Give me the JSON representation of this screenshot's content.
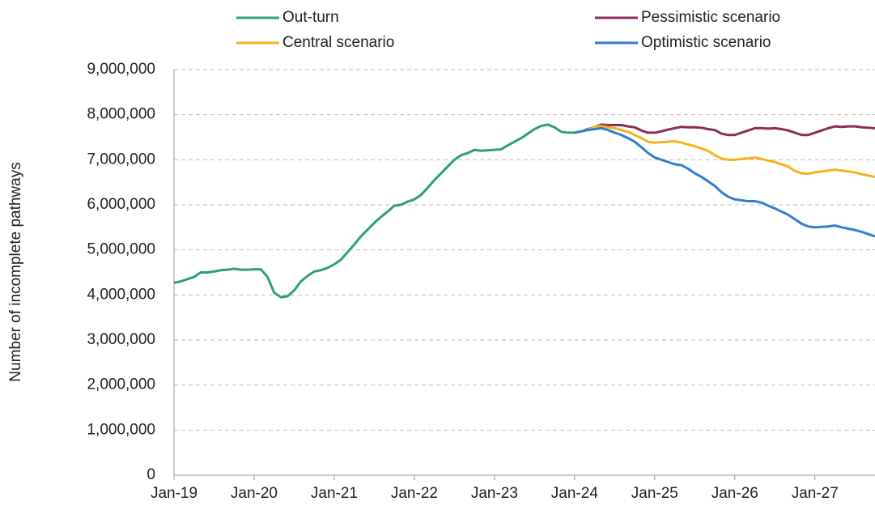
{
  "chart_data": {
    "type": "line",
    "y_label": "Number of incomplete pathways",
    "categories": [
      "Jan-19",
      null,
      null,
      null,
      null,
      null,
      null,
      null,
      null,
      null,
      null,
      null,
      "Jan-20",
      null,
      null,
      null,
      null,
      null,
      null,
      null,
      null,
      null,
      null,
      null,
      "Jan-21",
      null,
      null,
      null,
      null,
      null,
      null,
      null,
      null,
      null,
      null,
      null,
      "Jan-22",
      null,
      null,
      null,
      null,
      null,
      null,
      null,
      null,
      null,
      null,
      null,
      "Jan-23",
      null,
      null,
      null,
      null,
      null,
      null,
      null,
      null,
      null,
      null,
      null,
      "Jan-24",
      null,
      null,
      null,
      null,
      null,
      null,
      null,
      null,
      null,
      null,
      null,
      "Jan-25",
      null,
      null,
      null,
      null,
      null,
      null,
      null,
      null,
      null,
      null,
      null,
      "Jan-26",
      null,
      null,
      null,
      null,
      null,
      null,
      null,
      null,
      null,
      null,
      null,
      "Jan-27",
      null,
      null,
      null,
      null,
      null,
      null,
      null,
      null,
      null
    ],
    "series": [
      {
        "name": "Out-turn",
        "color": "#2e9e7a",
        "values": [
          4270000,
          4300000,
          4350000,
          4400000,
          4500000,
          4500000,
          4520000,
          4550000,
          4560000,
          4580000,
          4560000,
          4560000,
          4570000,
          4570000,
          4400000,
          4050000,
          3950000,
          3970000,
          4100000,
          4300000,
          4420000,
          4520000,
          4550000,
          4600000,
          4680000,
          4780000,
          4950000,
          5120000,
          5300000,
          5450000,
          5600000,
          5730000,
          5850000,
          5980000,
          6000000,
          6070000,
          6120000,
          6220000,
          6380000,
          6550000,
          6700000,
          6850000,
          7000000,
          7100000,
          7150000,
          7220000,
          7200000,
          7210000,
          7220000,
          7230000,
          7320000,
          7400000,
          7480000,
          7580000,
          7680000,
          7750000,
          7780000,
          7720000,
          7620000,
          7600000,
          7600000,
          null,
          null,
          null,
          null,
          null,
          null,
          null,
          null,
          null,
          null,
          null,
          null,
          null,
          null,
          null,
          null,
          null,
          null,
          null,
          null,
          null,
          null,
          null,
          null,
          null,
          null,
          null,
          null,
          null,
          null,
          null,
          null,
          null,
          null,
          null,
          null,
          null,
          null,
          null,
          null,
          null,
          null,
          null,
          null,
          null
        ]
      },
      {
        "name": "Pessimistic scenario",
        "color": "#8b2d5c",
        "values": [
          null,
          null,
          null,
          null,
          null,
          null,
          null,
          null,
          null,
          null,
          null,
          null,
          null,
          null,
          null,
          null,
          null,
          null,
          null,
          null,
          null,
          null,
          null,
          null,
          null,
          null,
          null,
          null,
          null,
          null,
          null,
          null,
          null,
          null,
          null,
          null,
          null,
          null,
          null,
          null,
          null,
          null,
          null,
          null,
          null,
          null,
          null,
          null,
          null,
          null,
          null,
          null,
          null,
          null,
          null,
          null,
          null,
          null,
          null,
          null,
          7600000,
          7630000,
          7680000,
          7720000,
          7780000,
          7770000,
          7770000,
          7770000,
          7740000,
          7720000,
          7650000,
          7600000,
          7600000,
          7630000,
          7670000,
          7700000,
          7730000,
          7720000,
          7720000,
          7710000,
          7680000,
          7660000,
          7580000,
          7550000,
          7550000,
          7600000,
          7650000,
          7700000,
          7700000,
          7690000,
          7700000,
          7680000,
          7650000,
          7600000,
          7550000,
          7550000,
          7600000,
          7650000,
          7700000,
          7740000,
          7730000,
          7740000,
          7740000,
          7720000,
          7710000,
          7700000
        ]
      },
      {
        "name": "Central scenario",
        "color": "#f5b21b",
        "values": [
          null,
          null,
          null,
          null,
          null,
          null,
          null,
          null,
          null,
          null,
          null,
          null,
          null,
          null,
          null,
          null,
          null,
          null,
          null,
          null,
          null,
          null,
          null,
          null,
          null,
          null,
          null,
          null,
          null,
          null,
          null,
          null,
          null,
          null,
          null,
          null,
          null,
          null,
          null,
          null,
          null,
          null,
          null,
          null,
          null,
          null,
          null,
          null,
          null,
          null,
          null,
          null,
          null,
          null,
          null,
          null,
          null,
          null,
          null,
          null,
          7600000,
          7630000,
          7670000,
          7720000,
          7750000,
          7720000,
          7700000,
          7660000,
          7620000,
          7550000,
          7480000,
          7400000,
          7380000,
          7390000,
          7400000,
          7410000,
          7380000,
          7340000,
          7300000,
          7250000,
          7200000,
          7100000,
          7030000,
          7000000,
          7000000,
          7020000,
          7030000,
          7050000,
          7020000,
          6980000,
          6950000,
          6900000,
          6850000,
          6750000,
          6700000,
          6690000,
          6720000,
          6740000,
          6760000,
          6780000,
          6760000,
          6740000,
          6720000,
          6680000,
          6650000,
          6620000
        ]
      },
      {
        "name": "Optimistic scenario",
        "color": "#2e7fcf",
        "values": [
          null,
          null,
          null,
          null,
          null,
          null,
          null,
          null,
          null,
          null,
          null,
          null,
          null,
          null,
          null,
          null,
          null,
          null,
          null,
          null,
          null,
          null,
          null,
          null,
          null,
          null,
          null,
          null,
          null,
          null,
          null,
          null,
          null,
          null,
          null,
          null,
          null,
          null,
          null,
          null,
          null,
          null,
          null,
          null,
          null,
          null,
          null,
          null,
          null,
          null,
          null,
          null,
          null,
          null,
          null,
          null,
          null,
          null,
          null,
          null,
          7600000,
          7630000,
          7660000,
          7680000,
          7700000,
          7660000,
          7600000,
          7550000,
          7480000,
          7400000,
          7280000,
          7150000,
          7050000,
          7000000,
          6950000,
          6900000,
          6880000,
          6800000,
          6700000,
          6620000,
          6520000,
          6420000,
          6280000,
          6180000,
          6120000,
          6100000,
          6080000,
          6080000,
          6050000,
          5980000,
          5920000,
          5850000,
          5780000,
          5680000,
          5580000,
          5520000,
          5500000,
          5510000,
          5520000,
          5540000,
          5500000,
          5470000,
          5440000,
          5400000,
          5350000,
          5300000
        ]
      }
    ],
    "ylim": [
      0,
      9000000
    ],
    "yticks": [
      0,
      {
        "value": 1000000,
        "label": "1,000,000"
      },
      {
        "value": 2000000,
        "label": "2,000,000"
      },
      {
        "value": 3000000,
        "label": "3,000,000"
      },
      {
        "value": 4000000,
        "label": "4,000,000"
      },
      {
        "value": 5000000,
        "label": "5,000,000"
      },
      {
        "value": 6000000,
        "label": "6,000,000"
      },
      {
        "value": 7000000,
        "label": "7,000,000"
      },
      {
        "value": 8000000,
        "label": "8,000,000"
      },
      {
        "value": 9000000,
        "label": "9,000,000"
      }
    ],
    "grid": true
  }
}
